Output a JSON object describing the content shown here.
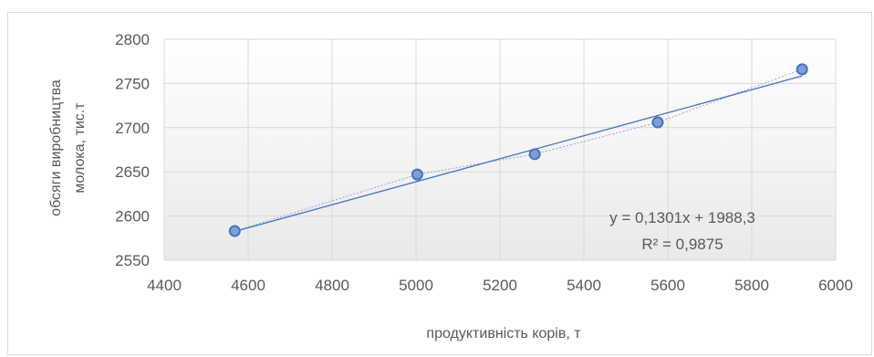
{
  "chart_data": {
    "type": "scatter",
    "title": "",
    "xlabel": "продуктивність корів, т",
    "ylabel_line1": "обсяги виробництва",
    "ylabel_line2": "молока, тис.т",
    "xlim": [
      4400,
      6000
    ],
    "ylim": [
      2550,
      2800
    ],
    "xticks": [
      4400,
      4600,
      4800,
      5000,
      5200,
      5400,
      5600,
      5800,
      6000
    ],
    "yticks": [
      2550,
      2600,
      2650,
      2700,
      2750,
      2800
    ],
    "grid": true,
    "points": [
      {
        "x": 4568,
        "y": 2583
      },
      {
        "x": 5003,
        "y": 2647
      },
      {
        "x": 5283,
        "y": 2670
      },
      {
        "x": 5576,
        "y": 2706
      },
      {
        "x": 5920,
        "y": 2766
      }
    ],
    "trendline": {
      "type": "linear",
      "slope": 0.1301,
      "intercept": 1988.3,
      "equation": "y = 0,1301x + 1988,3",
      "r_squared": "R² = 0,9875"
    },
    "colors": {
      "marker_fill": "#7f9fcf",
      "marker_stroke": "#4472c4",
      "trendline": "#4472c4",
      "connector": "#8eaadb",
      "grid": "#d9d9d9",
      "plot_bg_top": "#ffffff",
      "plot_bg_bottom": "#e9e9e9"
    }
  }
}
